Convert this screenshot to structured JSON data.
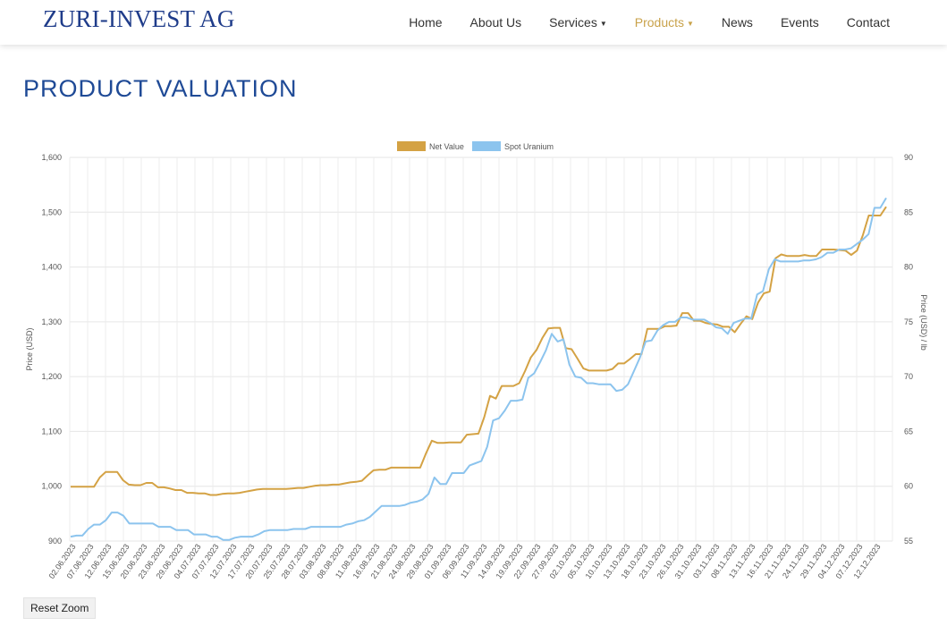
{
  "header": {
    "logo": "ZURI-INVEST AG",
    "nav": [
      {
        "label": "Home",
        "active": false,
        "has_dropdown": false
      },
      {
        "label": "About Us",
        "active": false,
        "has_dropdown": false
      },
      {
        "label": "Services",
        "active": false,
        "has_dropdown": true
      },
      {
        "label": "Products",
        "active": true,
        "has_dropdown": true
      },
      {
        "label": "News",
        "active": false,
        "has_dropdown": false
      },
      {
        "label": "Events",
        "active": false,
        "has_dropdown": false
      },
      {
        "label": "Contact",
        "active": false,
        "has_dropdown": false
      }
    ]
  },
  "page": {
    "title": "PRODUCT VALUATION",
    "reset_zoom_label": "Reset Zoom"
  },
  "colors": {
    "accent": "#c9a24a",
    "title_blue": "#1f4a96",
    "net_value": "#d4a244",
    "spot_uranium": "#8cc4ee"
  },
  "chart_data": {
    "type": "line",
    "legend_position": "top",
    "grid": true,
    "ylabel": "Price (USD)",
    "y2label": "Price (USD) / lb",
    "ylim": [
      900,
      1600
    ],
    "y2lim": [
      55,
      90
    ],
    "yticks": [
      "900",
      "1,000",
      "1,100",
      "1,200",
      "1,300",
      "1,400",
      "1,500",
      "1,600"
    ],
    "y2ticks": [
      "55",
      "60",
      "65",
      "70",
      "75",
      "80",
      "85",
      "90"
    ],
    "x_tick_labels": [
      "02.06.2023",
      "07.06.2023",
      "12.06.2023",
      "15.06.2023",
      "20.06.2023",
      "23.06.2023",
      "29.06.2023",
      "04.07.2023",
      "07.07.2023",
      "12.07.2023",
      "17.07.2023",
      "20.07.2023",
      "25.07.2023",
      "28.07.2023",
      "03.08.2023",
      "08.08.2023",
      "11.08.2023",
      "16.08.2023",
      "21.08.2023",
      "24.08.2023",
      "29.08.2023",
      "01.09.2023",
      "06.09.2023",
      "11.09.2023",
      "14.09.2023",
      "19.09.2023",
      "22.09.2023",
      "27.09.2023",
      "02.10.2023",
      "05.10.2023",
      "10.10.2023",
      "13.10.2023",
      "18.10.2023",
      "23.10.2023",
      "26.10.2023",
      "31.10.2023",
      "03.11.2023",
      "08.11.2023",
      "13.11.2023",
      "16.11.2023",
      "21.11.2023",
      "24.11.2023",
      "29.11.2023",
      "04.12.2023",
      "07.12.2023",
      "12.12.2023"
    ],
    "series": [
      {
        "name": "Net Value",
        "axis": "left",
        "values": [
          999,
          999,
          999,
          999,
          999,
          1016,
          1026,
          1026,
          1026,
          1011,
          1003,
          1002,
          1002,
          1006,
          1006,
          998,
          998,
          996,
          993,
          993,
          988,
          988,
          987,
          987,
          984,
          984,
          986,
          987,
          987,
          988,
          990,
          992,
          994,
          995,
          995,
          995,
          995,
          995,
          996,
          997,
          997,
          999,
          1001,
          1002,
          1002,
          1003,
          1003,
          1005,
          1007,
          1008,
          1010,
          1020,
          1029,
          1030,
          1030,
          1034,
          1034,
          1034,
          1034,
          1034,
          1034,
          1060,
          1083,
          1079,
          1079,
          1080,
          1080,
          1080,
          1094,
          1095,
          1096,
          1126,
          1165,
          1160,
          1183,
          1183,
          1183,
          1188,
          1210,
          1235,
          1249,
          1271,
          1288,
          1289,
          1289,
          1252,
          1250,
          1233,
          1215,
          1211,
          1211,
          1211,
          1211,
          1214,
          1224,
          1224,
          1232,
          1241,
          1241,
          1287,
          1287,
          1287,
          1292,
          1292,
          1293,
          1316,
          1316,
          1302,
          1302,
          1298,
          1296,
          1295,
          1291,
          1291,
          1281,
          1296,
          1310,
          1305,
          1335,
          1352,
          1355,
          1416,
          1423,
          1420,
          1420,
          1420,
          1422,
          1420,
          1420,
          1432,
          1432,
          1432,
          1431,
          1430,
          1422,
          1430,
          1458,
          1494,
          1494,
          1494,
          1510
        ]
      },
      {
        "name": "Spot Uranium",
        "axis": "right",
        "values": [
          55.4,
          55.5,
          55.5,
          56.1,
          56.5,
          56.5,
          56.9,
          57.6,
          57.6,
          57.3,
          56.6,
          56.6,
          56.6,
          56.6,
          56.6,
          56.3,
          56.3,
          56.3,
          56.0,
          56.0,
          56.0,
          55.6,
          55.6,
          55.6,
          55.4,
          55.4,
          55.1,
          55.1,
          55.3,
          55.4,
          55.4,
          55.4,
          55.6,
          55.9,
          56.0,
          56.0,
          56.0,
          56.0,
          56.1,
          56.1,
          56.1,
          56.3,
          56.3,
          56.3,
          56.3,
          56.3,
          56.3,
          56.5,
          56.6,
          56.8,
          56.9,
          57.2,
          57.7,
          58.2,
          58.2,
          58.2,
          58.2,
          58.3,
          58.5,
          58.6,
          58.8,
          59.3,
          60.8,
          60.2,
          60.2,
          61.2,
          61.2,
          61.2,
          61.9,
          62.1,
          62.3,
          63.6,
          66.0,
          66.2,
          66.9,
          67.8,
          67.8,
          67.9,
          69.9,
          70.3,
          71.3,
          72.4,
          73.9,
          73.2,
          73.4,
          71.1,
          70.0,
          69.9,
          69.4,
          69.4,
          69.3,
          69.3,
          69.3,
          68.7,
          68.8,
          69.3,
          70.5,
          71.7,
          73.2,
          73.3,
          74.2,
          74.7,
          75.0,
          75.0,
          75.4,
          75.4,
          75.2,
          75.2,
          75.2,
          74.9,
          74.5,
          74.4,
          73.9,
          74.9,
          75.1,
          75.3,
          75.3,
          77.5,
          77.8,
          79.8,
          80.7,
          80.5,
          80.5,
          80.5,
          80.5,
          80.6,
          80.6,
          80.7,
          80.9,
          81.3,
          81.3,
          81.6,
          81.6,
          81.7,
          82.1,
          82.5,
          83.0,
          85.4,
          85.4,
          86.3
        ]
      }
    ]
  }
}
